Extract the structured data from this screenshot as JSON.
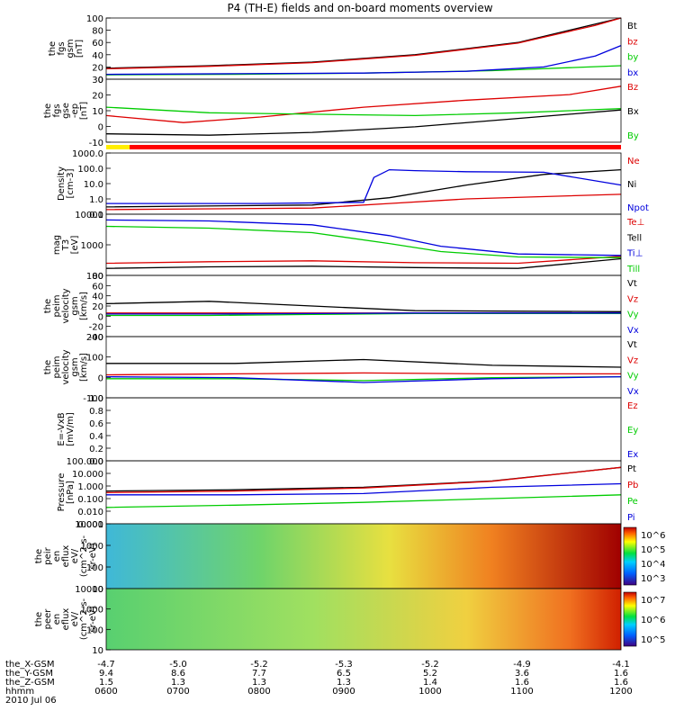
{
  "title": "P4 (TH-E) fields and on-board moments overview",
  "colors": {
    "black": "#000000",
    "red": "#dd0000",
    "green": "#00cc00",
    "blue": "#0000dd",
    "flag_yellow": "#ffee00",
    "flag_red": "#ff0000"
  },
  "chart_data": [
    {
      "type": "line",
      "id": "fgs_gsm",
      "ylabel_lines": [
        "the",
        "fgs",
        "gsm",
        "[nT]"
      ],
      "ylim": [
        0,
        100
      ],
      "ticks": [
        "100",
        "80",
        "60",
        "40",
        "20",
        "0"
      ],
      "legend": [
        {
          "name": "Bt",
          "color": "#000000"
        },
        {
          "name": "bz",
          "color": "#dd0000"
        },
        {
          "name": "by",
          "color": "#00cc00"
        },
        {
          "name": "bx",
          "color": "#0000dd"
        }
      ],
      "series": [
        {
          "name": "Bt",
          "x": [
            0,
            20,
            40,
            60,
            80,
            95,
            100
          ],
          "y": [
            18,
            22,
            28,
            40,
            60,
            90,
            100
          ]
        },
        {
          "name": "bz",
          "x": [
            0,
            20,
            40,
            60,
            80,
            95,
            100
          ],
          "y": [
            17,
            21,
            27,
            39,
            59,
            88,
            100
          ]
        },
        {
          "name": "by",
          "x": [
            0,
            25,
            50,
            75,
            100
          ],
          "y": [
            7,
            8,
            10,
            14,
            22
          ]
        },
        {
          "name": "bx",
          "x": [
            0,
            25,
            50,
            70,
            85,
            95,
            100
          ],
          "y": [
            8,
            9,
            10,
            13,
            20,
            38,
            55
          ]
        }
      ]
    },
    {
      "type": "line",
      "id": "fgs_gse",
      "ylabel_lines": [
        "the",
        "fgs",
        "gse",
        "-ep",
        "[nT]"
      ],
      "ylim": [
        -15,
        30
      ],
      "ticks": [
        "30",
        "20",
        "10",
        "0",
        "-10"
      ],
      "legend": [
        {
          "name": "Bz",
          "color": "#dd0000"
        },
        {
          "name": "Bx",
          "color": "#000000"
        },
        {
          "name": "By",
          "color": "#00cc00"
        }
      ],
      "series": [
        {
          "name": "Bz",
          "x": [
            0,
            15,
            30,
            50,
            70,
            90,
            100
          ],
          "y": [
            4,
            -1,
            3,
            10,
            15,
            19,
            25
          ]
        },
        {
          "name": "Bx",
          "x": [
            0,
            20,
            40,
            60,
            80,
            100
          ],
          "y": [
            -9,
            -10,
            -8,
            -4,
            2,
            8
          ]
        },
        {
          "name": "By",
          "x": [
            0,
            20,
            40,
            60,
            80,
            100
          ],
          "y": [
            10,
            6,
            5,
            4,
            6,
            9
          ]
        }
      ]
    },
    {
      "type": "line",
      "id": "density",
      "ylabel_lines": [
        "Density",
        "[cm-3]"
      ],
      "scale": "log",
      "ylim": [
        0.1,
        1000
      ],
      "ticks": [
        "1000.0",
        "100.0",
        "10.0",
        "1.0",
        "0.1"
      ],
      "legend": [
        {
          "name": "Ne",
          "color": "#dd0000"
        },
        {
          "name": "Ni",
          "color": "#000000"
        },
        {
          "name": "Npot",
          "color": "#0000dd"
        }
      ],
      "series": [
        {
          "name": "Ne",
          "x": [
            0,
            40,
            55,
            70,
            100
          ],
          "y": [
            0.2,
            0.25,
            0.5,
            1,
            2
          ]
        },
        {
          "name": "Ni",
          "x": [
            0,
            40,
            55,
            70,
            85,
            100
          ],
          "y": [
            0.3,
            0.4,
            1.2,
            8,
            40,
            80
          ]
        },
        {
          "name": "Npot",
          "x": [
            0,
            30,
            50,
            52,
            55,
            60,
            70,
            85,
            100
          ],
          "y": [
            0.5,
            0.5,
            0.6,
            25,
            80,
            70,
            60,
            55,
            8
          ]
        }
      ]
    },
    {
      "type": "line",
      "id": "temperature",
      "ylabel_lines": [
        "mag",
        "T3",
        "[eV]"
      ],
      "scale": "log",
      "ylim": [
        100,
        10000
      ],
      "ticks": [
        "10000",
        "1000",
        "100"
      ],
      "legend": [
        {
          "name": "Te⊥",
          "color": "#dd0000"
        },
        {
          "name": "Tell",
          "color": "#000000"
        },
        {
          "name": "Ti⊥",
          "color": "#0000dd"
        },
        {
          "name": "Till",
          "color": "#00cc00"
        }
      ],
      "series": [
        {
          "name": "Te⊥",
          "x": [
            0,
            20,
            40,
            60,
            80,
            100
          ],
          "y": [
            250,
            280,
            300,
            260,
            250,
            420
          ]
        },
        {
          "name": "Tell",
          "x": [
            0,
            20,
            40,
            60,
            80,
            100
          ],
          "y": [
            170,
            190,
            200,
            180,
            170,
            350
          ]
        },
        {
          "name": "Ti⊥",
          "x": [
            0,
            20,
            40,
            55,
            65,
            80,
            100
          ],
          "y": [
            6500,
            6000,
            4500,
            2000,
            900,
            500,
            450
          ]
        },
        {
          "name": "Till",
          "x": [
            0,
            20,
            40,
            55,
            65,
            80,
            100
          ],
          "y": [
            4000,
            3500,
            2500,
            1100,
            600,
            400,
            380
          ]
        }
      ]
    },
    {
      "type": "line",
      "id": "peim_velocity_gsm_a",
      "ylabel_lines": [
        "the",
        "peim",
        "velocity",
        "gsm",
        "[km/s]"
      ],
      "ylim": [
        -50,
        80
      ],
      "ticks": [
        "80",
        "60",
        "40",
        "20",
        "0",
        "-20",
        "-40"
      ],
      "legend": [
        {
          "name": "Vt",
          "color": "#000000"
        },
        {
          "name": "Vz",
          "color": "#dd0000"
        },
        {
          "name": "Vy",
          "color": "#00cc00"
        },
        {
          "name": "Vx",
          "color": "#0000dd"
        }
      ],
      "series": [
        {
          "name": "Vt",
          "x": [
            0,
            20,
            40,
            60,
            100
          ],
          "y": [
            20,
            25,
            15,
            5,
            3
          ]
        },
        {
          "name": "Vz",
          "x": [
            0,
            20,
            40,
            60,
            100
          ],
          "y": [
            0,
            0,
            0,
            0,
            0
          ]
        },
        {
          "name": "Vy",
          "x": [
            0,
            20,
            40,
            60,
            100
          ],
          "y": [
            -5,
            -5,
            -3,
            -1,
            -1
          ]
        },
        {
          "name": "Vx",
          "x": [
            0,
            20,
            40,
            60,
            100
          ],
          "y": [
            -2,
            -2,
            -1,
            0,
            0
          ]
        }
      ]
    },
    {
      "type": "line",
      "id": "peim_velocity_gsm_b",
      "ylabel_lines": [
        "the",
        "peim",
        "velocity",
        "gsm",
        "[km/s]"
      ],
      "ylim": [
        -120,
        200
      ],
      "ticks": [
        "200",
        "100",
        "0",
        "-100"
      ],
      "legend": [
        {
          "name": "Vt",
          "color": "#000000"
        },
        {
          "name": "Vz",
          "color": "#dd0000"
        },
        {
          "name": "Vy",
          "color": "#00cc00"
        },
        {
          "name": "Vx",
          "color": "#0000dd"
        }
      ],
      "series": [
        {
          "name": "Vt",
          "x": [
            0,
            25,
            50,
            75,
            100
          ],
          "y": [
            60,
            60,
            80,
            50,
            40
          ]
        },
        {
          "name": "Vz",
          "x": [
            0,
            25,
            50,
            75,
            100
          ],
          "y": [
            0,
            5,
            10,
            5,
            5
          ]
        },
        {
          "name": "Vy",
          "x": [
            0,
            25,
            50,
            75,
            100
          ],
          "y": [
            -20,
            -20,
            -30,
            -15,
            -10
          ]
        },
        {
          "name": "Vx",
          "x": [
            0,
            25,
            50,
            75,
            100
          ],
          "y": [
            -10,
            -15,
            -40,
            -20,
            -10
          ]
        }
      ]
    },
    {
      "type": "line",
      "id": "e_vxb",
      "ylabel_lines": [
        "E=-VxB",
        "[mV/m]"
      ],
      "ylim": [
        0,
        1
      ],
      "ticks": [
        "1.0",
        "0.8",
        "0.6",
        "0.4",
        "0.2",
        "0.0"
      ],
      "legend": [
        {
          "name": "Ez",
          "color": "#dd0000"
        },
        {
          "name": "Ey",
          "color": "#00cc00"
        },
        {
          "name": "Ex",
          "color": "#0000dd"
        }
      ],
      "series": []
    },
    {
      "type": "line",
      "id": "pressure",
      "ylabel_lines": [
        "Pressure",
        "[nPa]"
      ],
      "scale": "log",
      "ylim": [
        0.001,
        100
      ],
      "ticks": [
        "100.000",
        "10.000",
        "1.000",
        "0.100",
        "0.010",
        "0.001"
      ],
      "legend": [
        {
          "name": "Pt",
          "color": "#000000"
        },
        {
          "name": "Pb",
          "color": "#dd0000"
        },
        {
          "name": "Pe",
          "color": "#00cc00"
        },
        {
          "name": "Pi",
          "color": "#0000dd"
        }
      ],
      "series": [
        {
          "name": "Pt",
          "x": [
            0,
            25,
            50,
            75,
            100
          ],
          "y": [
            0.4,
            0.5,
            0.8,
            2.5,
            30
          ]
        },
        {
          "name": "Pb",
          "x": [
            0,
            25,
            50,
            75,
            100
          ],
          "y": [
            0.3,
            0.4,
            0.7,
            2.4,
            30
          ]
        },
        {
          "name": "Pe",
          "x": [
            0,
            25,
            50,
            75,
            100
          ],
          "y": [
            0.02,
            0.03,
            0.05,
            0.1,
            0.2
          ]
        },
        {
          "name": "Pi",
          "x": [
            0,
            25,
            50,
            75,
            100
          ],
          "y": [
            0.2,
            0.2,
            0.25,
            0.8,
            1.5
          ]
        }
      ]
    },
    {
      "type": "heatmap",
      "id": "peir_en_eflux",
      "ylabel_lines": [
        "the",
        "peir",
        "en",
        "eflux",
        "eV/",
        "(cm^2-s-",
        "sr-eV)"
      ],
      "scale": "log",
      "ylim": [
        10,
        10000
      ],
      "ticks": [
        "10000",
        "1000",
        "100",
        "10"
      ],
      "colorbar_ticks": [
        "10^6",
        "10^5",
        "10^4",
        "10^3"
      ]
    },
    {
      "type": "heatmap",
      "id": "peer_en_eflux",
      "ylabel_lines": [
        "the",
        "peer",
        "en",
        "eflux",
        "eV/",
        "(cm^2-s-",
        "sr-eV)"
      ],
      "scale": "log",
      "ylim": [
        10,
        10000
      ],
      "ticks": [
        "10000",
        "1000",
        "100",
        "10"
      ],
      "colorbar_ticks": [
        "10^7",
        "10^6",
        "10^5"
      ]
    }
  ],
  "x_axis": {
    "rows": [
      {
        "label": "the_X-GSM",
        "values": [
          "-4.7",
          "-5.0",
          "-5.2",
          "-5.3",
          "-5.2",
          "-4.9",
          "-4.1"
        ]
      },
      {
        "label": "the_Y-GSM",
        "values": [
          "9.4",
          "8.6",
          "7.7",
          "6.5",
          "5.2",
          "3.6",
          "1.6"
        ]
      },
      {
        "label": "the_Z-GSM",
        "values": [
          "1.5",
          "1.3",
          "1.3",
          "1.3",
          "1.4",
          "1.6",
          "1.6"
        ]
      },
      {
        "label": "hhmm",
        "values": [
          "0600",
          "0700",
          "0800",
          "0900",
          "1000",
          "1100",
          "1200"
        ]
      }
    ],
    "date": "2010 Jul 06"
  }
}
